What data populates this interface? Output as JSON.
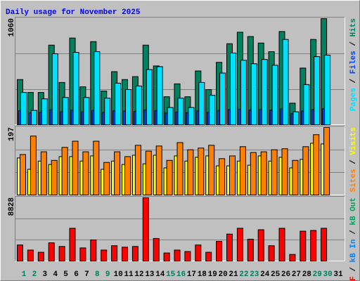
{
  "legend_separator": " / ",
  "chart_data": [
    {
      "type": "bar",
      "title": "Daily usage for November 2025",
      "ylim": [
        0,
        1060
      ],
      "yticks": [
        1060
      ],
      "series": [
        {
          "name": "Hits",
          "color": "#00805c",
          "values": [
            451,
            322,
            322,
            795,
            422,
            866,
            379,
            830,
            336,
            530,
            451,
            480,
            795,
            587,
            279,
            408,
            279,
            537,
            351,
            623,
            809,
            924,
            881,
            816,
            730,
            931,
            215,
            566,
            852,
            1060,
            null
          ]
        },
        {
          "name": "Files",
          "color": "#0040ff",
          "values": [
            140,
            120,
            125,
            150,
            130,
            145,
            128,
            142,
            122,
            138,
            135,
            132,
            148,
            140,
            118,
            126,
            120,
            138,
            124,
            142,
            150,
            155,
            148,
            152,
            146,
            158,
            110,
            136,
            150,
            160,
            null
          ]
        },
        {
          "name": "Pages",
          "color": "#00e0ff",
          "values": [
            322,
            143,
            258,
            709,
            272,
            723,
            272,
            730,
            265,
            415,
            351,
            387,
            551,
            580,
            172,
            265,
            172,
            422,
            294,
            516,
            716,
            644,
            609,
            652,
            594,
            852,
            129,
            401,
            680,
            695,
            null
          ]
        }
      ]
    },
    {
      "type": "bar",
      "ylim": [
        0,
        197
      ],
      "yticks": [
        197
      ],
      "series": [
        {
          "name": "Visits",
          "color": "#ffff00",
          "values": [
            108,
            75,
            99,
            89,
            112,
            112,
            99,
            114,
            75,
            99,
            89,
            116,
            91,
            116,
            79,
            114,
            99,
            110,
            114,
            85,
            85,
            99,
            87,
            114,
            99,
            110,
            79,
            104,
            151,
            149,
            null
          ]
        },
        {
          "name": "Sites",
          "color": "#ff8000",
          "values": [
            118,
            172,
            126,
            101,
            139,
            157,
            126,
            157,
            95,
            126,
            112,
            145,
            128,
            143,
            101,
            153,
            132,
            137,
            145,
            106,
            114,
            141,
            124,
            126,
            132,
            135,
            101,
            141,
            176,
            197,
            null
          ]
        }
      ]
    },
    {
      "type": "bar",
      "ylim": [
        0,
        8828
      ],
      "yticks": [
        8828
      ],
      "categories": [
        "1",
        "2",
        "3",
        "4",
        "5",
        "6",
        "7",
        "8",
        "9",
        "10",
        "11",
        "12",
        "13",
        "14",
        "15",
        "16",
        "17",
        "18",
        "19",
        "20",
        "21",
        "22",
        "23",
        "24",
        "25",
        "26",
        "27",
        "28",
        "29",
        "30",
        "31"
      ],
      "category_colors": [
        "#00805c",
        "#00805c",
        "#000000",
        "#000000",
        "#000000",
        "#000000",
        "#000000",
        "#00805c",
        "#00805c",
        "#000000",
        "#000000",
        "#000000",
        "#000000",
        "#000000",
        "#00805c",
        "#00805c",
        "#000000",
        "#000000",
        "#000000",
        "#000000",
        "#000000",
        "#00805c",
        "#00805c",
        "#000000",
        "#000000",
        "#000000",
        "#000000",
        "#000000",
        "#00805c",
        "#00805c",
        "#000000"
      ],
      "series": [
        {
          "name": "kB Out",
          "color": "#00a060",
          "values": [
            null,
            null,
            null,
            null,
            null,
            null,
            null,
            null,
            null,
            null,
            null,
            null,
            null,
            null,
            null,
            null,
            null,
            null,
            null,
            null,
            null,
            null,
            null,
            null,
            null,
            null,
            null,
            null,
            null,
            null,
            null
          ]
        },
        {
          "name": "kB In",
          "color": "#0080ff",
          "values": [
            null,
            null,
            null,
            null,
            null,
            null,
            null,
            null,
            null,
            null,
            null,
            null,
            null,
            null,
            null,
            null,
            null,
            null,
            null,
            null,
            null,
            null,
            null,
            null,
            null,
            null,
            null,
            null,
            null,
            null,
            null
          ]
        },
        {
          "name": "kB F",
          "color": "#ff0000",
          "values": [
            2233,
            1523,
            1218,
            2537,
            2030,
            4568,
            1827,
            2944,
            1523,
            2131,
            1929,
            2030,
            8828,
            3146,
            1117,
            1523,
            1320,
            2233,
            1218,
            2741,
            3756,
            4568,
            3045,
            4365,
            2131,
            4568,
            914,
            4162,
            4264,
            4568,
            null
          ]
        }
      ]
    }
  ]
}
